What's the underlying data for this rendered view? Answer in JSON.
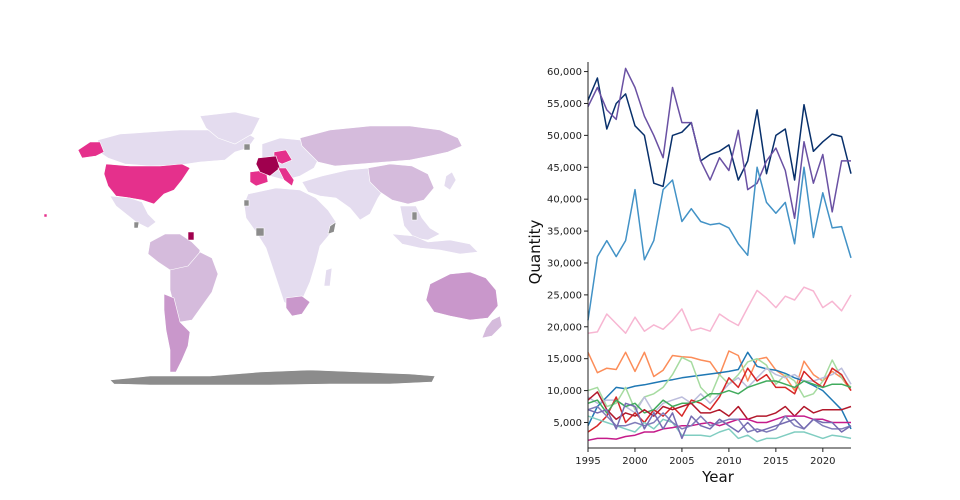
{
  "map": {
    "land_default_color": "#e4dcef",
    "missing_color": "#8c8c8c",
    "regions": [
      {
        "name": "North America (Canada)",
        "color": "#e4dcef"
      },
      {
        "name": "United States",
        "color": "#e5308c"
      },
      {
        "name": "Alaska",
        "color": "#e5308c"
      },
      {
        "name": "Greenland",
        "color": "#e4dcef"
      },
      {
        "name": "Mexico",
        "color": "#e4dcef"
      },
      {
        "name": "South America (north)",
        "color": "#d5bbdc"
      },
      {
        "name": "South America (Brazil)",
        "color": "#d5bbdc"
      },
      {
        "name": "Argentina / Chile",
        "color": "#c997cb"
      },
      {
        "name": "French Guiana",
        "color": "#a0004e"
      },
      {
        "name": "Europe",
        "color": "#e4dcef"
      },
      {
        "name": "France",
        "color": "#a0004e"
      },
      {
        "name": "Italy",
        "color": "#e5308c"
      },
      {
        "name": "Spain",
        "color": "#e5308c"
      },
      {
        "name": "Germany",
        "color": "#d5bbdc"
      },
      {
        "name": "Russia",
        "color": "#d5bbdc"
      },
      {
        "name": "China",
        "color": "#d5bbdc"
      },
      {
        "name": "Africa",
        "color": "#e4dcef"
      },
      {
        "name": "South Africa",
        "color": "#c997cb"
      },
      {
        "name": "Middle East / India",
        "color": "#e4dcef"
      },
      {
        "name": "Southeast Asia",
        "color": "#e4dcef"
      },
      {
        "name": "Australia",
        "color": "#c997cb"
      },
      {
        "name": "New Zealand",
        "color": "#d5bbdc"
      },
      {
        "name": "Antarctica",
        "color": "#8c8c8c"
      }
    ]
  },
  "chart_data": {
    "type": "line",
    "xlabel": "Year",
    "ylabel": "Quantity",
    "xlim": [
      1995,
      2023
    ],
    "ylim": [
      1000,
      61500
    ],
    "xticks": [
      1995,
      2000,
      2005,
      2010,
      2015,
      2020
    ],
    "xtick_labels": [
      "1995",
      "2000",
      "2005",
      "2010",
      "2015",
      "2020"
    ],
    "yticks": [
      5000,
      10000,
      15000,
      20000,
      25000,
      30000,
      35000,
      40000,
      45000,
      50000,
      55000,
      60000
    ],
    "ytick_labels": [
      "5,000",
      "10,000",
      "15,000",
      "20,000",
      "25,000",
      "30,000",
      "35,000",
      "40,000",
      "45,000",
      "50,000",
      "55,000",
      "60,000"
    ],
    "x": [
      1995,
      1996,
      1997,
      1998,
      1999,
      2000,
      2001,
      2002,
      2003,
      2004,
      2005,
      2006,
      2007,
      2008,
      2009,
      2010,
      2011,
      2012,
      2013,
      2014,
      2015,
      2016,
      2017,
      2018,
      2019,
      2020,
      2021,
      2022,
      2023
    ],
    "series": [
      {
        "color": "#08306b",
        "values": [
          55500,
          59000,
          51000,
          55000,
          56500,
          51500,
          50000,
          42500,
          42000,
          50000,
          50500,
          52000,
          46000,
          47000,
          47500,
          48500,
          43000,
          46000,
          54000,
          44000,
          50000,
          51000,
          43000,
          54800,
          47500,
          49000,
          50200,
          49800,
          44000
        ]
      },
      {
        "color": "#6a51a3",
        "values": [
          54500,
          57500,
          54000,
          52500,
          60500,
          57500,
          53000,
          50000,
          46500,
          57500,
          52000,
          52000,
          46000,
          43000,
          46500,
          44500,
          50800,
          41500,
          42500,
          46000,
          48000,
          44500,
          37000,
          49000,
          42500,
          47000,
          38000,
          46000,
          46000
        ]
      },
      {
        "color": "#4292c6",
        "values": [
          21000,
          31000,
          33500,
          31000,
          33500,
          41500,
          30500,
          33500,
          41500,
          43000,
          36500,
          38500,
          36500,
          36000,
          36200,
          35500,
          33000,
          31200,
          45000,
          39500,
          37800,
          39500,
          33000,
          45000,
          34000,
          41000,
          35500,
          35700,
          30800
        ]
      },
      {
        "color": "#f7b6d2",
        "values": [
          19000,
          19200,
          22000,
          20500,
          19000,
          21500,
          19300,
          20300,
          19600,
          21000,
          22800,
          19400,
          19800,
          19300,
          22000,
          21000,
          20200,
          23000,
          25700,
          24500,
          23000,
          24800,
          24200,
          26200,
          25600,
          23000,
          24000,
          22500,
          25000
        ]
      },
      {
        "color": "#fc8d59",
        "values": [
          16000,
          12800,
          13500,
          13300,
          16000,
          13000,
          16000,
          12200,
          13200,
          15500,
          15300,
          15200,
          14800,
          14500,
          12400,
          16200,
          15500,
          11500,
          14900,
          15200,
          13200,
          12200,
          10000,
          14600,
          12500,
          11500,
          13000,
          12000,
          10000
        ]
      },
      {
        "color": "#1f78b4",
        "values": [
          4500,
          7500,
          9000,
          10500,
          10300,
          10700,
          10900,
          11200,
          11500,
          11700,
          12000,
          12200,
          12400,
          12600,
          12800,
          13000,
          13300,
          16000,
          13800,
          13400,
          13200,
          12700,
          12000,
          11500,
          10800,
          10000,
          8500,
          7000,
          4000
        ]
      },
      {
        "color": "#a6dba0",
        "values": [
          10000,
          10500,
          7500,
          8000,
          10500,
          7000,
          9000,
          9500,
          10500,
          12500,
          15200,
          14500,
          10500,
          9000,
          12500,
          11000,
          12500,
          14500,
          15000,
          14000,
          11000,
          12500,
          11500,
          9000,
          9500,
          11500,
          14800,
          12000,
          10500
        ]
      },
      {
        "color": "#bcbddc",
        "values": [
          9000,
          8000,
          8500,
          8500,
          7500,
          6500,
          9000,
          6500,
          8000,
          8500,
          9000,
          8000,
          9500,
          8000,
          9500,
          11000,
          12000,
          10500,
          12000,
          13500,
          12500,
          12000,
          12500,
          11500,
          11500,
          12000,
          12500,
          13500,
          11000
        ]
      },
      {
        "color": "#d62728",
        "values": [
          3500,
          4500,
          6000,
          9000,
          5000,
          6500,
          5000,
          7000,
          6000,
          7500,
          6000,
          8500,
          8000,
          7000,
          9000,
          12000,
          10500,
          13500,
          11500,
          12500,
          10500,
          10500,
          9500,
          13000,
          11500,
          10500,
          13500,
          12500,
          10000
        ]
      },
      {
        "color": "#41ab5d",
        "values": [
          8000,
          8500,
          6500,
          8500,
          7500,
          8000,
          6500,
          7000,
          8500,
          7500,
          8000,
          8000,
          8500,
          9500,
          9500,
          10000,
          9500,
          10500,
          11000,
          11500,
          11500,
          11000,
          10500,
          11500,
          11000,
          10500,
          11000,
          11000,
          10500
        ]
      },
      {
        "color": "#b2182b",
        "values": [
          8500,
          9800,
          7000,
          5500,
          6500,
          6000,
          7000,
          6000,
          7500,
          7000,
          7500,
          8000,
          6500,
          6500,
          7000,
          6000,
          7500,
          5500,
          6000,
          6000,
          6500,
          7500,
          6000,
          7500,
          6500,
          7000,
          7000,
          7000,
          7500
        ]
      },
      {
        "color": "#80cdc1",
        "values": [
          6000,
          5500,
          5000,
          4500,
          4000,
          3500,
          5000,
          4000,
          5500,
          5000,
          3000,
          3000,
          3000,
          2800,
          3500,
          4000,
          2500,
          3000,
          2000,
          2500,
          2500,
          3000,
          3500,
          3500,
          3000,
          2500,
          3000,
          2800,
          2500
        ]
      },
      {
        "color": "#c51b8a",
        "values": [
          2200,
          2500,
          2500,
          2400,
          2800,
          3000,
          3500,
          3500,
          4000,
          4200,
          4500,
          4500,
          4800,
          5000,
          4500,
          5000,
          5500,
          5500,
          5000,
          5000,
          5500,
          6000,
          6000,
          6000,
          5500,
          5500,
          5000,
          5000,
          5000
        ]
      },
      {
        "color": "#807dba",
        "values": [
          7000,
          7500,
          6000,
          4500,
          4500,
          5000,
          4500,
          5000,
          6500,
          5000,
          4000,
          4500,
          6000,
          4500,
          5000,
          5500,
          5500,
          3500,
          4000,
          3500,
          4000,
          6000,
          4500,
          4000,
          5500,
          4500,
          4000,
          4000,
          4500
        ]
      },
      {
        "color": "#756bb1",
        "values": [
          7000,
          6500,
          7000,
          4000,
          8000,
          7500,
          4000,
          6500,
          4000,
          6500,
          2500,
          6000,
          4500,
          4000,
          5500,
          4500,
          3500,
          5000,
          3500,
          4000,
          4500,
          5000,
          5500,
          4000,
          5500,
          5000,
          5000,
          3500,
          4500
        ]
      }
    ]
  }
}
